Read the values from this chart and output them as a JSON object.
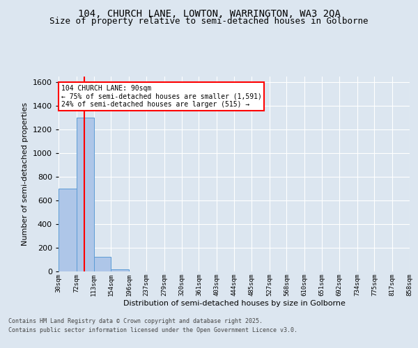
{
  "title1": "104, CHURCH LANE, LOWTON, WARRINGTON, WA3 2QA",
  "title2": "Size of property relative to semi-detached houses in Golborne",
  "xlabel": "Distribution of semi-detached houses by size in Golborne",
  "ylabel": "Number of semi-detached properties",
  "bar_edges": [
    30,
    72,
    113,
    154,
    196,
    237,
    279,
    320,
    361,
    403,
    444,
    485,
    527,
    568,
    610,
    651,
    692,
    734,
    775,
    817,
    858
  ],
  "bar_heights": [
    700,
    1300,
    125,
    20,
    0,
    0,
    0,
    0,
    0,
    0,
    0,
    0,
    0,
    0,
    0,
    0,
    0,
    0,
    0,
    0
  ],
  "bar_color": "#aec6e8",
  "bar_edge_color": "#5b9bd5",
  "property_size": 90,
  "red_line_color": "#ff0000",
  "annotation_line1": "104 CHURCH LANE: 90sqm",
  "annotation_line2": "← 75% of semi-detached houses are smaller (1,591)",
  "annotation_line3": "24% of semi-detached houses are larger (515) →",
  "annotation_box_color": "#ffffff",
  "annotation_box_edge_color": "#ff0000",
  "footer_line1": "Contains HM Land Registry data © Crown copyright and database right 2025.",
  "footer_line2": "Contains public sector information licensed under the Open Government Licence v3.0.",
  "ylim": [
    0,
    1650
  ],
  "background_color": "#dce6f0",
  "plot_background_color": "#dce6f0",
  "grid_color": "#ffffff",
  "title_fontsize": 10,
  "subtitle_fontsize": 9,
  "ylabel_fontsize": 8,
  "xlabel_fontsize": 8,
  "tick_labels": [
    "30sqm",
    "72sqm",
    "113sqm",
    "154sqm",
    "196sqm",
    "237sqm",
    "279sqm",
    "320sqm",
    "361sqm",
    "403sqm",
    "444sqm",
    "485sqm",
    "527sqm",
    "568sqm",
    "610sqm",
    "651sqm",
    "692sqm",
    "734sqm",
    "775sqm",
    "817sqm",
    "858sqm"
  ]
}
